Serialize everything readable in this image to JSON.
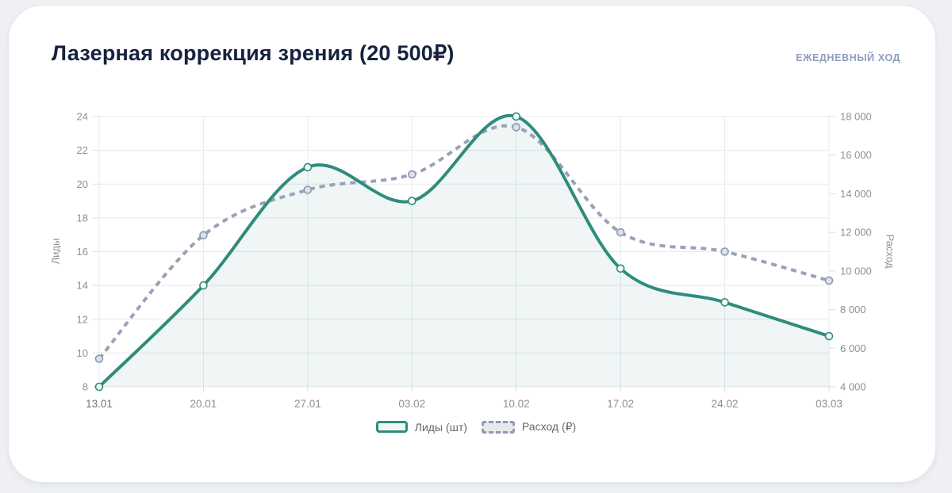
{
  "header": {
    "title": "Лазерная коррекция зрения (20 500₽)",
    "mode_label": "ЕЖЕДНЕВНЫЙ ХОД"
  },
  "legend": {
    "position": "bottom",
    "items": [
      {
        "label": "Лиды (шт)",
        "swatch": "teal-solid"
      },
      {
        "label": "Расход (₽)",
        "swatch": "gray-dashed"
      }
    ]
  },
  "colors": {
    "leads_line": "#2f8c7c",
    "leads_fill": "rgba(48,140,125,0.08)",
    "leads_marker_fill": "#f7fbfa",
    "spend_line": "#98a2ba",
    "spend_marker_fill": "#dce0e8",
    "spend_marker_stroke": "#8e99b4",
    "grid": "#e7e9ec",
    "tick": "#d8dbe0",
    "tick_text": "#8b9099",
    "tick_text_first": "#6d727a",
    "title_text": "#16223e",
    "card_bg": "#ffffff",
    "page_bg": "#eef0f4"
  },
  "chart_data": {
    "type": "line",
    "title": "Лазерная коррекция зрения (20 500₽)",
    "categories": [
      "13.01",
      "20.01",
      "27.01",
      "03.02",
      "10.02",
      "17.02",
      "24.02",
      "03.03"
    ],
    "series": [
      {
        "name": "Лиды (шт)",
        "axis": "left",
        "style": "solid",
        "area": true,
        "color": "#2f8c7c",
        "values": [
          8,
          14,
          21,
          19,
          24,
          15,
          13,
          11
        ]
      },
      {
        "name": "Расход (₽)",
        "axis": "right",
        "style": "dashed",
        "area": false,
        "color": "#98a2ba",
        "values": [
          5450,
          11850,
          14200,
          15000,
          17450,
          12000,
          11000,
          9500
        ]
      }
    ],
    "left_axis": {
      "label": "Лиды",
      "min": 8,
      "max": 24,
      "ticks": [
        8,
        10,
        12,
        14,
        16,
        18,
        20,
        22,
        24
      ]
    },
    "right_axis": {
      "label": "Расход",
      "min": 4000,
      "max": 18000,
      "ticks": [
        4000,
        6000,
        8000,
        10000,
        12000,
        14000,
        16000,
        18000
      ]
    },
    "grid": true,
    "smooth": true
  }
}
